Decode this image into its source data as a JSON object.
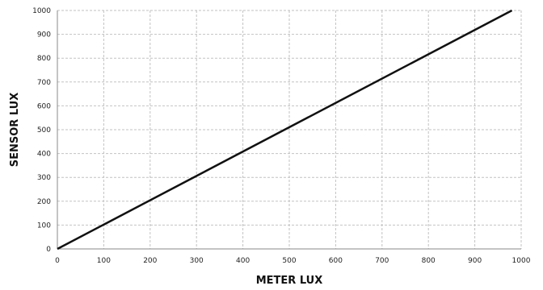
{
  "chart_data": {
    "type": "line",
    "title": "",
    "xlabel": "METER LUX",
    "ylabel": "SENSOR LUX",
    "xlim": [
      0,
      1000
    ],
    "ylim": [
      0,
      1000
    ],
    "x_ticks": [
      0,
      100,
      200,
      300,
      400,
      500,
      600,
      700,
      800,
      900,
      1000
    ],
    "y_ticks": [
      0,
      100,
      200,
      300,
      400,
      500,
      600,
      700,
      800,
      900,
      1000
    ],
    "grid": true,
    "legend": "none",
    "series": [
      {
        "color": "#111111",
        "x": [
          0,
          980
        ],
        "y": [
          0,
          1000
        ]
      }
    ]
  }
}
